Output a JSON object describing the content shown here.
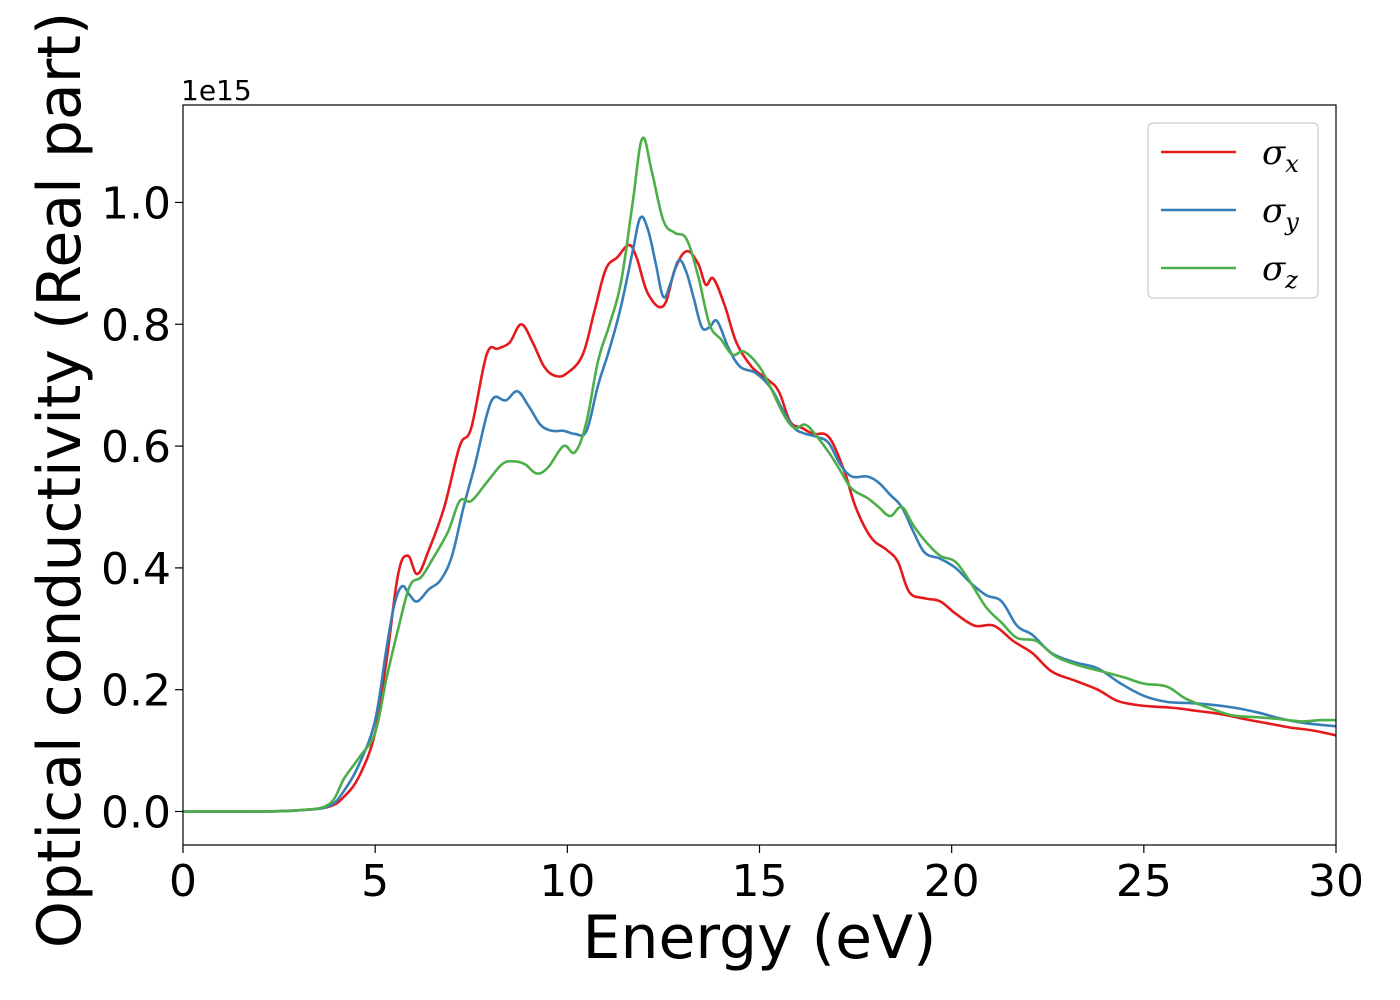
{
  "chart_data": {
    "type": "line",
    "xlabel": "Energy (eV)",
    "ylabel": "Optical conductivity (Real part)",
    "y_offset_text": "1e15",
    "xlim": [
      0,
      30
    ],
    "ylim": [
      -0.055,
      1.16
    ],
    "x_ticks": [
      0,
      5,
      10,
      15,
      20,
      25,
      30
    ],
    "x_tick_labels": [
      "0",
      "5",
      "10",
      "15",
      "20",
      "25",
      "30"
    ],
    "y_ticks": [
      0.0,
      0.2,
      0.4,
      0.6,
      0.8,
      1.0
    ],
    "y_tick_labels": [
      "0.0",
      "0.2",
      "0.4",
      "0.6",
      "0.8",
      "1.0"
    ],
    "grid": false,
    "legend_position": "top-right",
    "series": [
      {
        "name": "σx",
        "legend_main": "σ",
        "legend_sub": "x",
        "color": "#e41a1c",
        "points": [
          [
            0,
            0.0
          ],
          [
            2,
            0.0
          ],
          [
            3,
            0.002
          ],
          [
            3.8,
            0.008
          ],
          [
            4.2,
            0.025
          ],
          [
            4.6,
            0.06
          ],
          [
            5.0,
            0.13
          ],
          [
            5.3,
            0.25
          ],
          [
            5.6,
            0.39
          ],
          [
            5.85,
            0.42
          ],
          [
            6.1,
            0.39
          ],
          [
            6.4,
            0.43
          ],
          [
            6.8,
            0.5
          ],
          [
            7.2,
            0.6
          ],
          [
            7.5,
            0.63
          ],
          [
            7.9,
            0.75
          ],
          [
            8.2,
            0.76
          ],
          [
            8.5,
            0.77
          ],
          [
            8.8,
            0.8
          ],
          [
            9.1,
            0.77
          ],
          [
            9.4,
            0.73
          ],
          [
            9.7,
            0.715
          ],
          [
            10.0,
            0.72
          ],
          [
            10.4,
            0.75
          ],
          [
            10.7,
            0.82
          ],
          [
            11.0,
            0.89
          ],
          [
            11.3,
            0.91
          ],
          [
            11.6,
            0.93
          ],
          [
            11.8,
            0.91
          ],
          [
            12.1,
            0.85
          ],
          [
            12.5,
            0.83
          ],
          [
            12.8,
            0.89
          ],
          [
            13.1,
            0.92
          ],
          [
            13.4,
            0.9
          ],
          [
            13.6,
            0.865
          ],
          [
            13.8,
            0.875
          ],
          [
            14.1,
            0.83
          ],
          [
            14.4,
            0.77
          ],
          [
            14.8,
            0.73
          ],
          [
            15.2,
            0.71
          ],
          [
            15.5,
            0.69
          ],
          [
            15.8,
            0.64
          ],
          [
            16.1,
            0.63
          ],
          [
            16.4,
            0.62
          ],
          [
            16.8,
            0.615
          ],
          [
            17.2,
            0.56
          ],
          [
            17.5,
            0.5
          ],
          [
            17.9,
            0.45
          ],
          [
            18.3,
            0.43
          ],
          [
            18.6,
            0.41
          ],
          [
            18.9,
            0.36
          ],
          [
            19.3,
            0.35
          ],
          [
            19.7,
            0.345
          ],
          [
            20.1,
            0.325
          ],
          [
            20.6,
            0.305
          ],
          [
            21.1,
            0.305
          ],
          [
            21.6,
            0.28
          ],
          [
            22.1,
            0.26
          ],
          [
            22.6,
            0.23
          ],
          [
            23.2,
            0.215
          ],
          [
            23.8,
            0.2
          ],
          [
            24.3,
            0.182
          ],
          [
            24.8,
            0.175
          ],
          [
            25.3,
            0.172
          ],
          [
            25.8,
            0.17
          ],
          [
            26.4,
            0.165
          ],
          [
            27.0,
            0.16
          ],
          [
            27.6,
            0.152
          ],
          [
            28.2,
            0.145
          ],
          [
            28.8,
            0.138
          ],
          [
            29.4,
            0.133
          ],
          [
            30.0,
            0.125
          ]
        ]
      },
      {
        "name": "σy",
        "legend_main": "σ",
        "legend_sub": "y",
        "color": "#377eb8",
        "points": [
          [
            0,
            0.0
          ],
          [
            2,
            0.0
          ],
          [
            3,
            0.002
          ],
          [
            3.8,
            0.009
          ],
          [
            4.2,
            0.035
          ],
          [
            4.6,
            0.08
          ],
          [
            5.0,
            0.15
          ],
          [
            5.3,
            0.27
          ],
          [
            5.5,
            0.34
          ],
          [
            5.7,
            0.37
          ],
          [
            5.9,
            0.355
          ],
          [
            6.1,
            0.345
          ],
          [
            6.4,
            0.365
          ],
          [
            6.7,
            0.38
          ],
          [
            7.0,
            0.42
          ],
          [
            7.3,
            0.5
          ],
          [
            7.6,
            0.57
          ],
          [
            7.9,
            0.65
          ],
          [
            8.1,
            0.68
          ],
          [
            8.4,
            0.675
          ],
          [
            8.7,
            0.69
          ],
          [
            9.0,
            0.665
          ],
          [
            9.3,
            0.635
          ],
          [
            9.6,
            0.625
          ],
          [
            9.9,
            0.625
          ],
          [
            10.2,
            0.62
          ],
          [
            10.5,
            0.625
          ],
          [
            10.8,
            0.7
          ],
          [
            11.1,
            0.76
          ],
          [
            11.4,
            0.83
          ],
          [
            11.7,
            0.92
          ],
          [
            11.9,
            0.975
          ],
          [
            12.1,
            0.955
          ],
          [
            12.3,
            0.9
          ],
          [
            12.5,
            0.845
          ],
          [
            12.7,
            0.87
          ],
          [
            12.9,
            0.905
          ],
          [
            13.1,
            0.885
          ],
          [
            13.3,
            0.84
          ],
          [
            13.5,
            0.795
          ],
          [
            13.7,
            0.795
          ],
          [
            13.9,
            0.805
          ],
          [
            14.2,
            0.76
          ],
          [
            14.5,
            0.73
          ],
          [
            14.9,
            0.72
          ],
          [
            15.3,
            0.695
          ],
          [
            15.6,
            0.66
          ],
          [
            15.9,
            0.63
          ],
          [
            16.2,
            0.62
          ],
          [
            16.5,
            0.615
          ],
          [
            16.8,
            0.605
          ],
          [
            17.1,
            0.57
          ],
          [
            17.4,
            0.55
          ],
          [
            17.8,
            0.55
          ],
          [
            18.1,
            0.54
          ],
          [
            18.4,
            0.52
          ],
          [
            18.7,
            0.5
          ],
          [
            19.0,
            0.46
          ],
          [
            19.3,
            0.425
          ],
          [
            19.7,
            0.415
          ],
          [
            20.1,
            0.4
          ],
          [
            20.5,
            0.375
          ],
          [
            20.9,
            0.355
          ],
          [
            21.3,
            0.345
          ],
          [
            21.7,
            0.305
          ],
          [
            22.1,
            0.29
          ],
          [
            22.6,
            0.26
          ],
          [
            23.2,
            0.245
          ],
          [
            23.8,
            0.235
          ],
          [
            24.4,
            0.21
          ],
          [
            25.0,
            0.19
          ],
          [
            25.6,
            0.18
          ],
          [
            26.2,
            0.178
          ],
          [
            26.8,
            0.175
          ],
          [
            27.4,
            0.17
          ],
          [
            28.0,
            0.162
          ],
          [
            28.6,
            0.152
          ],
          [
            29.2,
            0.145
          ],
          [
            30.0,
            0.14
          ]
        ]
      },
      {
        "name": "σz",
        "legend_main": "σ",
        "legend_sub": "z",
        "color": "#4daf4a",
        "points": [
          [
            0,
            0.0
          ],
          [
            2,
            0.0
          ],
          [
            3,
            0.002
          ],
          [
            3.8,
            0.012
          ],
          [
            4.2,
            0.055
          ],
          [
            4.6,
            0.09
          ],
          [
            5.0,
            0.13
          ],
          [
            5.3,
            0.22
          ],
          [
            5.6,
            0.3
          ],
          [
            5.9,
            0.37
          ],
          [
            6.2,
            0.385
          ],
          [
            6.5,
            0.415
          ],
          [
            6.9,
            0.46
          ],
          [
            7.2,
            0.51
          ],
          [
            7.5,
            0.51
          ],
          [
            7.9,
            0.54
          ],
          [
            8.3,
            0.57
          ],
          [
            8.6,
            0.575
          ],
          [
            8.9,
            0.57
          ],
          [
            9.2,
            0.555
          ],
          [
            9.5,
            0.565
          ],
          [
            9.9,
            0.6
          ],
          [
            10.2,
            0.59
          ],
          [
            10.5,
            0.64
          ],
          [
            10.8,
            0.74
          ],
          [
            11.1,
            0.8
          ],
          [
            11.4,
            0.87
          ],
          [
            11.7,
            1.0
          ],
          [
            11.95,
            1.105
          ],
          [
            12.2,
            1.05
          ],
          [
            12.5,
            0.97
          ],
          [
            12.8,
            0.95
          ],
          [
            13.1,
            0.94
          ],
          [
            13.4,
            0.88
          ],
          [
            13.7,
            0.8
          ],
          [
            14.0,
            0.775
          ],
          [
            14.3,
            0.75
          ],
          [
            14.6,
            0.755
          ],
          [
            15.0,
            0.73
          ],
          [
            15.3,
            0.695
          ],
          [
            15.6,
            0.655
          ],
          [
            15.9,
            0.63
          ],
          [
            16.2,
            0.635
          ],
          [
            16.5,
            0.615
          ],
          [
            16.8,
            0.59
          ],
          [
            17.1,
            0.56
          ],
          [
            17.4,
            0.53
          ],
          [
            17.8,
            0.515
          ],
          [
            18.1,
            0.5
          ],
          [
            18.4,
            0.485
          ],
          [
            18.7,
            0.5
          ],
          [
            19.0,
            0.47
          ],
          [
            19.3,
            0.445
          ],
          [
            19.7,
            0.42
          ],
          [
            20.1,
            0.41
          ],
          [
            20.5,
            0.375
          ],
          [
            20.9,
            0.335
          ],
          [
            21.3,
            0.31
          ],
          [
            21.7,
            0.285
          ],
          [
            22.2,
            0.28
          ],
          [
            22.7,
            0.255
          ],
          [
            23.3,
            0.24
          ],
          [
            23.9,
            0.23
          ],
          [
            24.5,
            0.22
          ],
          [
            25.0,
            0.21
          ],
          [
            25.6,
            0.205
          ],
          [
            26.1,
            0.185
          ],
          [
            26.7,
            0.17
          ],
          [
            27.3,
            0.158
          ],
          [
            27.9,
            0.155
          ],
          [
            28.5,
            0.152
          ],
          [
            29.1,
            0.148
          ],
          [
            29.6,
            0.15
          ],
          [
            30.0,
            0.15
          ]
        ]
      }
    ]
  }
}
